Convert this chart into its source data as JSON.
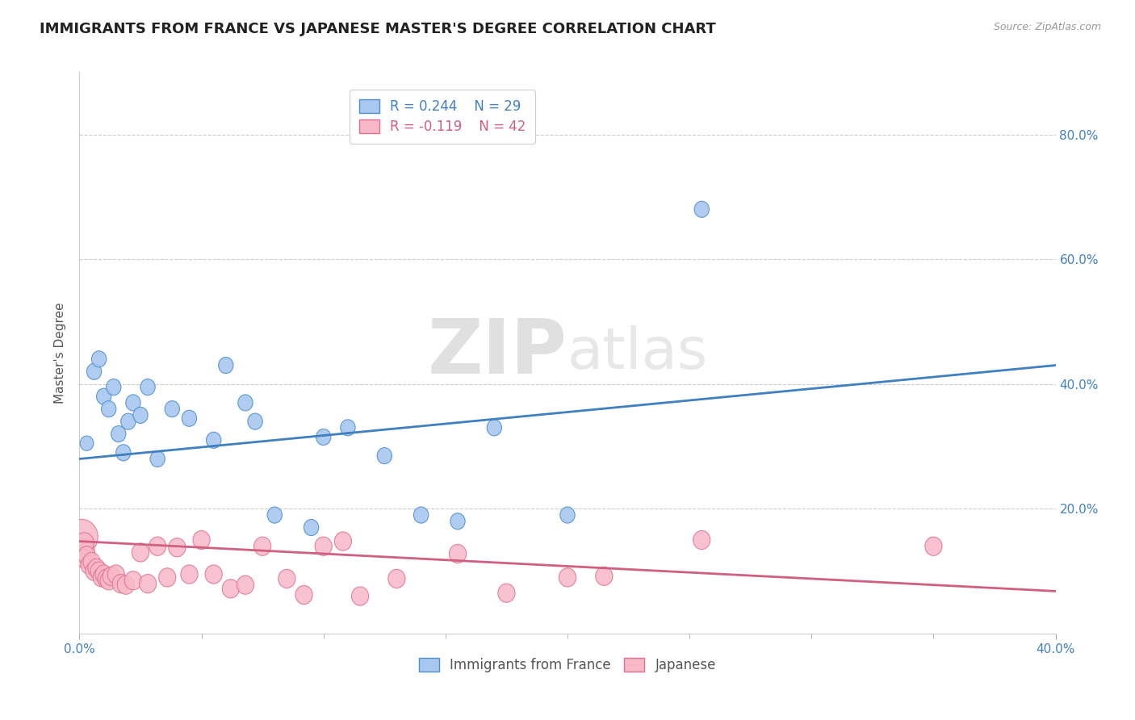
{
  "title": "IMMIGRANTS FROM FRANCE VS JAPANESE MASTER'S DEGREE CORRELATION CHART",
  "source_text": "Source: ZipAtlas.com",
  "ylabel": "Master's Degree",
  "xlim": [
    0,
    0.4
  ],
  "ylim": [
    0,
    0.9
  ],
  "xtick_labels_edge": [
    "0.0%",
    "40.0%"
  ],
  "xtick_vals_edge": [
    0.0,
    0.4
  ],
  "xtick_minor_vals": [
    0.05,
    0.1,
    0.15,
    0.2,
    0.25,
    0.3,
    0.35
  ],
  "ytick_labels": [
    "20.0%",
    "40.0%",
    "60.0%",
    "80.0%"
  ],
  "ytick_vals": [
    0.2,
    0.4,
    0.6,
    0.8
  ],
  "blue_R": "R = 0.244",
  "blue_N": "N = 29",
  "pink_R": "R = -0.119",
  "pink_N": "N = 42",
  "blue_fill_color": "#A8C8F0",
  "pink_fill_color": "#F8B8C8",
  "blue_edge_color": "#5090D0",
  "pink_edge_color": "#E07090",
  "blue_line_color": "#4080C0",
  "pink_line_color": "#D06080",
  "watermark_zip": "ZIP",
  "watermark_atlas": "atlas",
  "legend_label_blue": "Immigrants from France",
  "legend_label_pink": "Japanese",
  "blue_scatter_x": [
    0.003,
    0.006,
    0.008,
    0.01,
    0.012,
    0.014,
    0.016,
    0.018,
    0.02,
    0.022,
    0.025,
    0.028,
    0.032,
    0.038,
    0.045,
    0.055,
    0.06,
    0.068,
    0.072,
    0.08,
    0.095,
    0.1,
    0.11,
    0.125,
    0.14,
    0.155,
    0.17,
    0.2,
    0.255
  ],
  "blue_scatter_y": [
    0.305,
    0.42,
    0.44,
    0.38,
    0.36,
    0.395,
    0.32,
    0.29,
    0.34,
    0.37,
    0.35,
    0.395,
    0.28,
    0.36,
    0.345,
    0.31,
    0.43,
    0.37,
    0.34,
    0.19,
    0.17,
    0.315,
    0.33,
    0.285,
    0.19,
    0.18,
    0.33,
    0.19,
    0.68
  ],
  "blue_scatter_sizes": [
    50,
    60,
    60,
    60,
    60,
    60,
    60,
    60,
    60,
    60,
    60,
    60,
    60,
    60,
    60,
    60,
    60,
    60,
    60,
    60,
    60,
    60,
    60,
    60,
    60,
    60,
    60,
    60,
    60
  ],
  "pink_scatter_x": [
    0.001,
    0.001,
    0.002,
    0.002,
    0.003,
    0.004,
    0.005,
    0.006,
    0.007,
    0.008,
    0.009,
    0.01,
    0.011,
    0.012,
    0.013,
    0.015,
    0.017,
    0.019,
    0.022,
    0.025,
    0.028,
    0.032,
    0.036,
    0.04,
    0.045,
    0.05,
    0.055,
    0.062,
    0.068,
    0.075,
    0.085,
    0.092,
    0.1,
    0.108,
    0.115,
    0.13,
    0.155,
    0.175,
    0.2,
    0.215,
    0.255,
    0.35
  ],
  "pink_scatter_y": [
    0.155,
    0.13,
    0.145,
    0.12,
    0.125,
    0.11,
    0.115,
    0.1,
    0.105,
    0.1,
    0.09,
    0.095,
    0.088,
    0.085,
    0.092,
    0.095,
    0.08,
    0.078,
    0.085,
    0.13,
    0.08,
    0.14,
    0.09,
    0.138,
    0.095,
    0.15,
    0.095,
    0.072,
    0.078,
    0.14,
    0.088,
    0.062,
    0.14,
    0.148,
    0.06,
    0.088,
    0.128,
    0.065,
    0.09,
    0.092,
    0.15,
    0.14
  ],
  "pink_scatter_sizes": [
    280,
    180,
    100,
    80,
    80,
    80,
    80,
    80,
    80,
    80,
    80,
    80,
    80,
    80,
    80,
    80,
    80,
    80,
    80,
    80,
    80,
    80,
    80,
    80,
    80,
    80,
    80,
    80,
    80,
    80,
    80,
    80,
    80,
    80,
    80,
    80,
    80,
    80,
    80,
    80,
    80,
    80
  ],
  "blue_trend_x": [
    0.0,
    0.4
  ],
  "blue_trend_y": [
    0.28,
    0.43
  ],
  "pink_trend_x": [
    0.0,
    0.4
  ],
  "pink_trend_y": [
    0.148,
    0.068
  ],
  "grid_color": "#CCCCCC",
  "background_color": "#FFFFFF",
  "title_fontsize": 13,
  "axis_label_fontsize": 11,
  "tick_fontsize": 11,
  "legend_fontsize": 12
}
